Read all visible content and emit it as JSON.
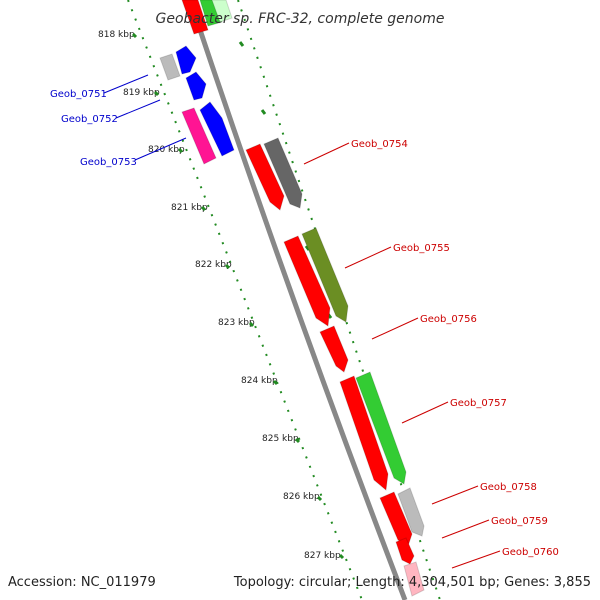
{
  "title": "Geobacter sp. FRC-32, complete genome",
  "footer": {
    "accession": "Accession: NC_011979",
    "stats": "Topology: circular; Length: 4,304,501 bp; Genes: 3,855"
  },
  "ruler": [
    "818 kbp",
    "819 kbp",
    "820 kbp",
    "821 kbp",
    "822 kbp",
    "823 kbp",
    "824 kbp",
    "825 kbp",
    "826 kbp",
    "827 kbp"
  ],
  "genes": [
    {
      "name": "Geob_0751",
      "color": "#0000cc",
      "strand": "reverse"
    },
    {
      "name": "Geob_0752",
      "color": "#0000cc",
      "strand": "reverse"
    },
    {
      "name": "Geob_0753",
      "color": "#0000cc",
      "strand": "reverse"
    },
    {
      "name": "Geob_0754",
      "color": "#cc0000",
      "strand": "forward"
    },
    {
      "name": "Geob_0755",
      "color": "#cc0000",
      "strand": "forward"
    },
    {
      "name": "Geob_0756",
      "color": "#cc0000",
      "strand": "forward"
    },
    {
      "name": "Geob_0757",
      "color": "#cc0000",
      "strand": "forward"
    },
    {
      "name": "Geob_0758",
      "color": "#cc0000",
      "strand": "forward"
    },
    {
      "name": "Geob_0759",
      "color": "#cc0000",
      "strand": "forward"
    },
    {
      "name": "Geob_0760",
      "color": "#cc0000",
      "strand": "forward"
    }
  ],
  "colors": {
    "backbone": "#888888",
    "tick_green": "#228b22",
    "cds_forward": "#ff0000",
    "cds_reverse": "#0000ff",
    "cog_gray": "#bbbbbb",
    "cog_dark": "#666666",
    "cog_olive": "#6b8e23",
    "cog_green": "#33cc33",
    "cog_pink": "#ff1493",
    "cog_light_pink": "#ffb6c1"
  }
}
